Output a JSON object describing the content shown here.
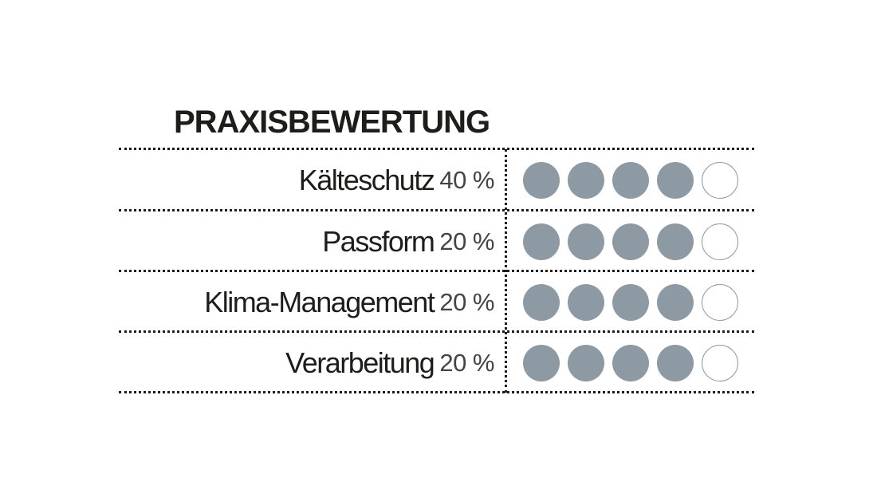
{
  "title": "PRAXISBEWERTUNG",
  "max_rating": 5,
  "colors": {
    "filled_dot": "#8e9aa3",
    "empty_dot_border": "#8e9aa3",
    "text": "#1d1d1b"
  },
  "rows": [
    {
      "name": "Kälteschutz",
      "weight": "40 %",
      "rating": 4
    },
    {
      "name": "Passform",
      "weight": "20 %",
      "rating": 4
    },
    {
      "name": "Klima-Management",
      "weight": "20 %",
      "rating": 4
    },
    {
      "name": "Verarbeitung",
      "weight": "20 %",
      "rating": 4
    }
  ]
}
